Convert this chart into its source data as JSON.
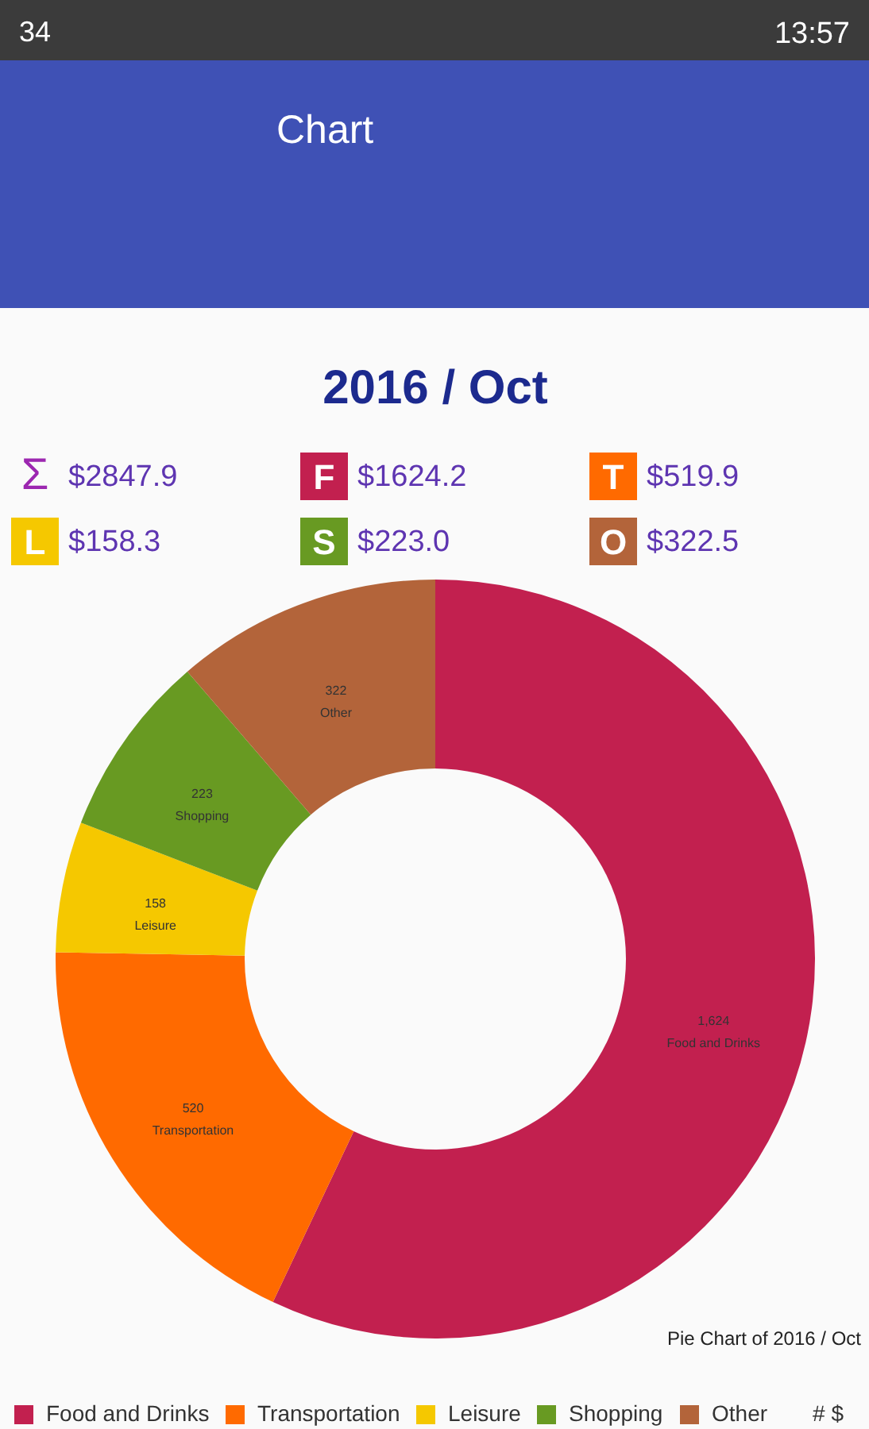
{
  "chart_data": {
    "type": "donut",
    "title": "2016 / Oct",
    "categories": [
      "Food and Drinks",
      "Transportation",
      "Leisure",
      "Shopping",
      "Other"
    ],
    "values": [
      1624.2,
      519.9,
      158.3,
      223.0,
      322.5
    ],
    "colors": [
      "#c2204f",
      "#ff6a00",
      "#f5c800",
      "#689a22",
      "#b3643a"
    ],
    "value_labels": [
      "1,624",
      "520",
      "158",
      "223",
      "322"
    ],
    "legend": "bottom",
    "annotations": [
      "34",
      "13:57",
      "Chart",
      "Σ $2847.9",
      "F $1624.2",
      "T $519.9",
      "L $158.3",
      "S $223.0",
      "O $322.5",
      "Pie Chart of 2016 / Oct",
      "# $"
    ]
  }
}
